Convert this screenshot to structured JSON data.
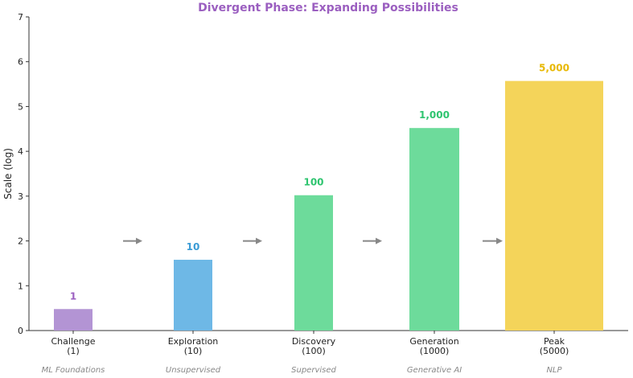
{
  "chart_data": {
    "type": "bar",
    "title": "Divergent Phase: Expanding Possibilities",
    "ylabel": "Scale (log)",
    "ylim": [
      0,
      7
    ],
    "yticks": [
      "0",
      "1",
      "2",
      "3",
      "4",
      "5",
      "6",
      "7"
    ],
    "grid": false,
    "categories": [
      {
        "label": "Challenge",
        "count": "(1)",
        "sub": "ML Foundations"
      },
      {
        "label": "Exploration",
        "count": "(10)",
        "sub": "Unsupervised"
      },
      {
        "label": "Discovery",
        "count": "(100)",
        "sub": "Supervised"
      },
      {
        "label": "Generation",
        "count": "(1000)",
        "sub": "Generative AI"
      },
      {
        "label": "Peak",
        "count": "(5000)",
        "sub": "NLP"
      }
    ],
    "values": [
      0.48,
      1.58,
      3.02,
      4.52,
      5.57
    ],
    "data_labels": [
      "1",
      "10",
      "100",
      "1,000",
      "5,000"
    ],
    "colors": [
      "#b394d4",
      "#6eb8e6",
      "#6ddb9b",
      "#6ddb9b",
      "#f4d45a"
    ],
    "label_colors": [
      "#9b5fc0",
      "#3a9bd5",
      "#2ec46f",
      "#2ec46f",
      "#e8b800"
    ],
    "arrow_color": "#888888"
  }
}
